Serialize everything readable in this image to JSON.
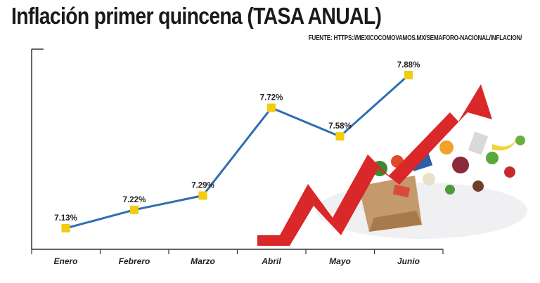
{
  "header": {
    "title": "Inflación primer quincena (TASA ANUAL)",
    "source": "FUENTE: HTTPS://MEXICOCOMOVAMOS.MX/SEMAFORO-NACIONAL/INFLACION/"
  },
  "colors": {
    "line": "#2e6db3",
    "marker": "#f2cc0d",
    "arrow": "#d9272a",
    "axis": "#333333"
  },
  "chart_data": {
    "type": "line",
    "title": "Inflación primer quincena (TASA ANUAL)",
    "categories": [
      "Enero",
      "Febrero",
      "Marzo",
      "Abril",
      "Mayo",
      "Junio"
    ],
    "values": [
      7.13,
      7.22,
      7.29,
      7.72,
      7.58,
      7.88
    ],
    "data_labels": [
      "7.13%",
      "7.22%",
      "7.29%",
      "7.72%",
      "7.58%",
      "7.88%"
    ],
    "ylim": [
      7.0,
      7.95
    ],
    "grid": false,
    "legend": "none"
  },
  "illustration": {
    "icon": "rising-prices-arrow-with-groceries-icon"
  }
}
